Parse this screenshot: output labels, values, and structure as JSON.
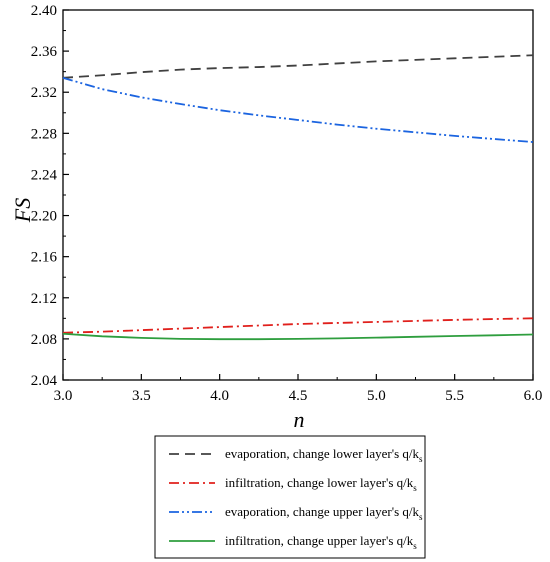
{
  "chart_data": {
    "type": "line",
    "title": "",
    "xlabel": "n",
    "ylabel": "FS",
    "xlim": [
      3.0,
      6.0
    ],
    "ylim": [
      2.04,
      2.4
    ],
    "x_ticks": [
      "3.0",
      "3.5",
      "4.0",
      "4.5",
      "5.0",
      "5.5",
      "6.0"
    ],
    "y_ticks": [
      "2.04",
      "2.08",
      "2.12",
      "2.16",
      "2.20",
      "2.24",
      "2.28",
      "2.32",
      "2.36",
      "2.40"
    ],
    "grid": false,
    "legend_position": "below",
    "x": [
      3.0,
      3.25,
      3.5,
      3.75,
      4.0,
      4.25,
      4.5,
      4.75,
      5.0,
      5.25,
      5.5,
      5.75,
      6.0
    ],
    "series": [
      {
        "name": "evaporation, change lower layer's q/k",
        "name_sub": "s",
        "color": "#404040",
        "dash": "dash",
        "values": [
          2.334,
          2.3365,
          2.3395,
          2.342,
          2.3435,
          2.3445,
          2.346,
          2.348,
          2.35,
          2.3515,
          2.353,
          2.3545,
          2.356
        ]
      },
      {
        "name": "infiltration, change lower layer's q/k",
        "name_sub": "s",
        "color": "#e0201c",
        "dash": "dashdot",
        "values": [
          2.086,
          2.087,
          2.0885,
          2.09,
          2.0915,
          2.093,
          2.0945,
          2.0955,
          2.0965,
          2.0975,
          2.0985,
          2.0993,
          2.1
        ]
      },
      {
        "name": "evaporation, change upper layer's q/k",
        "name_sub": "s",
        "color": "#1b64e0",
        "dash": "dashdotdot",
        "values": [
          2.334,
          2.323,
          2.315,
          2.3085,
          2.3025,
          2.2975,
          2.293,
          2.2885,
          2.2845,
          2.281,
          2.2775,
          2.2745,
          2.2715
        ]
      },
      {
        "name": "infiltration, change upper layer's q/k",
        "name_sub": "s",
        "color": "#2e9e3e",
        "dash": "solid",
        "values": [
          2.085,
          2.0825,
          2.081,
          2.08,
          2.0797,
          2.0797,
          2.08,
          2.0805,
          2.0812,
          2.082,
          2.0828,
          2.0835,
          2.0843
        ]
      }
    ]
  }
}
